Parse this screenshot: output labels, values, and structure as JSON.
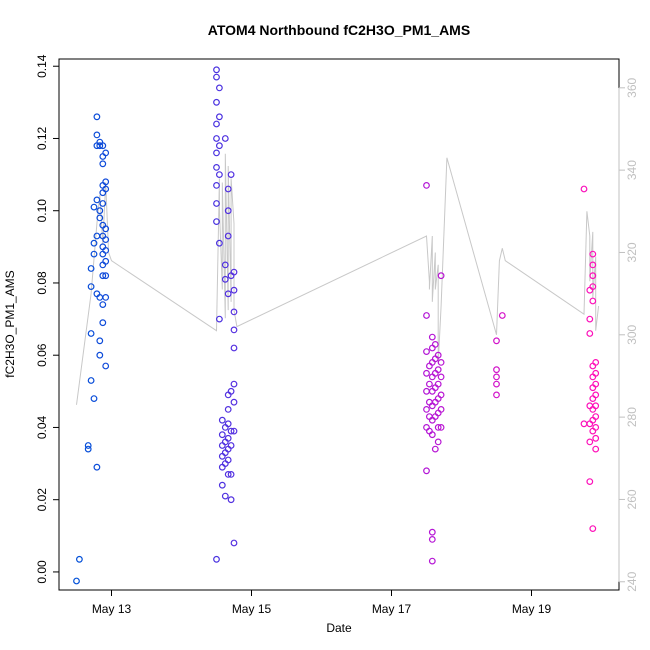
{
  "chart_data": {
    "type": "scatter",
    "title": "ATOM4 Northbound fC2H3O_PM1_AMS",
    "xlabel": "Date",
    "ylabel": "fC2H3O_PM1_AMS",
    "x_ticks": [
      "May 13",
      "May 15",
      "May 17",
      "May 19"
    ],
    "y_ticks": [
      "0.00",
      "0.02",
      "0.04",
      "0.06",
      "0.08",
      "0.10",
      "0.12",
      "0.14"
    ],
    "y2_ticks": [
      "240",
      "260",
      "280",
      "300",
      "320",
      "340",
      "360"
    ],
    "ylim": [
      -0.005,
      0.142
    ],
    "y2lim": [
      238,
      367
    ],
    "xlim": [
      "May 12 06:00",
      "May 20 06:00"
    ],
    "grid": false,
    "colors": {
      "start": "#0050d8",
      "mid": "#8a1ae6",
      "end": "#ff10b8",
      "line": "#c8c8c8",
      "right_axis": "#c0c0c0"
    },
    "series": [
      {
        "marker": "circle",
        "points": [
          [
            "May 12 12:00",
            -0.0025
          ],
          [
            "May 12 13:00",
            0.0035
          ],
          [
            "May 12 16:00",
            0.035
          ],
          [
            "May 12 16:00",
            0.034
          ],
          [
            "May 12 17:00",
            0.053
          ],
          [
            "May 12 17:00",
            0.066
          ],
          [
            "May 12 17:00",
            0.079
          ],
          [
            "May 12 17:00",
            0.084
          ],
          [
            "May 12 18:00",
            0.048
          ],
          [
            "May 12 18:00",
            0.088
          ],
          [
            "May 12 18:00",
            0.091
          ],
          [
            "May 12 18:00",
            0.101
          ],
          [
            "May 12 19:00",
            0.126
          ],
          [
            "May 12 19:00",
            0.118
          ],
          [
            "May 12 19:00",
            0.121
          ],
          [
            "May 12 19:00",
            0.103
          ],
          [
            "May 12 19:00",
            0.093
          ],
          [
            "May 12 19:00",
            0.077
          ],
          [
            "May 12 19:00",
            0.029
          ],
          [
            "May 12 20:00",
            0.119
          ],
          [
            "May 12 20:00",
            0.118
          ],
          [
            "May 12 20:00",
            0.1
          ],
          [
            "May 12 20:00",
            0.098
          ],
          [
            "May 12 20:00",
            0.076
          ],
          [
            "May 12 20:00",
            0.064
          ],
          [
            "May 12 20:00",
            0.06
          ],
          [
            "May 12 21:00",
            0.118
          ],
          [
            "May 12 21:00",
            0.115
          ],
          [
            "May 12 21:00",
            0.113
          ],
          [
            "May 12 21:00",
            0.107
          ],
          [
            "May 12 21:00",
            0.105
          ],
          [
            "May 12 21:00",
            0.102
          ],
          [
            "May 12 21:00",
            0.096
          ],
          [
            "May 12 21:00",
            0.093
          ],
          [
            "May 12 21:00",
            0.09
          ],
          [
            "May 12 21:00",
            0.088
          ],
          [
            "May 12 21:00",
            0.085
          ],
          [
            "May 12 21:00",
            0.082
          ],
          [
            "May 12 21:00",
            0.074
          ],
          [
            "May 12 21:00",
            0.069
          ],
          [
            "May 12 22:00",
            0.116
          ],
          [
            "May 12 22:00",
            0.108
          ],
          [
            "May 12 22:00",
            0.106
          ],
          [
            "May 12 22:00",
            0.095
          ],
          [
            "May 12 22:00",
            0.092
          ],
          [
            "May 12 22:00",
            0.089
          ],
          [
            "May 12 22:00",
            0.086
          ],
          [
            "May 12 22:00",
            0.082
          ],
          [
            "May 12 22:00",
            0.076
          ],
          [
            "May 12 22:00",
            0.057
          ],
          [
            "May 14 12:00",
            0.0035
          ],
          [
            "May 14 12:00",
            0.139
          ],
          [
            "May 14 12:00",
            0.137
          ],
          [
            "May 14 12:00",
            0.13
          ],
          [
            "May 14 12:00",
            0.124
          ],
          [
            "May 14 12:00",
            0.12
          ],
          [
            "May 14 12:00",
            0.116
          ],
          [
            "May 14 12:00",
            0.112
          ],
          [
            "May 14 12:00",
            0.107
          ],
          [
            "May 14 12:00",
            0.102
          ],
          [
            "May 14 12:00",
            0.097
          ],
          [
            "May 14 13:00",
            0.134
          ],
          [
            "May 14 13:00",
            0.126
          ],
          [
            "May 14 13:00",
            0.118
          ],
          [
            "May 14 13:00",
            0.11
          ],
          [
            "May 14 13:00",
            0.091
          ],
          [
            "May 14 13:00",
            0.07
          ],
          [
            "May 14 14:00",
            0.042
          ],
          [
            "May 14 14:00",
            0.038
          ],
          [
            "May 14 14:00",
            0.035
          ],
          [
            "May 14 14:00",
            0.032
          ],
          [
            "May 14 14:00",
            0.029
          ],
          [
            "May 14 14:00",
            0.024
          ],
          [
            "May 14 15:00",
            0.12
          ],
          [
            "May 14 15:00",
            0.085
          ],
          [
            "May 14 15:00",
            0.081
          ],
          [
            "May 14 15:00",
            0.04
          ],
          [
            "May 14 15:00",
            0.036
          ],
          [
            "May 14 15:00",
            0.033
          ],
          [
            "May 14 15:00",
            0.03
          ],
          [
            "May 14 15:00",
            0.021
          ],
          [
            "May 14 16:00",
            0.106
          ],
          [
            "May 14 16:00",
            0.1
          ],
          [
            "May 14 16:00",
            0.093
          ],
          [
            "May 14 16:00",
            0.077
          ],
          [
            "May 14 16:00",
            0.049
          ],
          [
            "May 14 16:00",
            0.045
          ],
          [
            "May 14 16:00",
            0.041
          ],
          [
            "May 14 16:00",
            0.037
          ],
          [
            "May 14 16:00",
            0.034
          ],
          [
            "May 14 16:00",
            0.031
          ],
          [
            "May 14 16:00",
            0.027
          ],
          [
            "May 14 17:00",
            0.11
          ],
          [
            "May 14 17:00",
            0.082
          ],
          [
            "May 14 17:00",
            0.05
          ],
          [
            "May 14 17:00",
            0.039
          ],
          [
            "May 14 17:00",
            0.035
          ],
          [
            "May 14 17:00",
            0.027
          ],
          [
            "May 14 17:00",
            0.02
          ],
          [
            "May 14 18:00",
            0.083
          ],
          [
            "May 14 18:00",
            0.078
          ],
          [
            "May 14 18:00",
            0.072
          ],
          [
            "May 14 18:00",
            0.067
          ],
          [
            "May 14 18:00",
            0.062
          ],
          [
            "May 14 18:00",
            0.052
          ],
          [
            "May 14 18:00",
            0.047
          ],
          [
            "May 14 18:00",
            0.039
          ],
          [
            "May 14 18:00",
            0.008
          ],
          [
            "May 17 12:00",
            0.107
          ],
          [
            "May 17 12:00",
            0.071
          ],
          [
            "May 17 12:00",
            0.061
          ],
          [
            "May 17 12:00",
            0.055
          ],
          [
            "May 17 12:00",
            0.05
          ],
          [
            "May 17 12:00",
            0.045
          ],
          [
            "May 17 12:00",
            0.04
          ],
          [
            "May 17 12:00",
            0.028
          ],
          [
            "May 17 13:00",
            0.057
          ],
          [
            "May 17 13:00",
            0.052
          ],
          [
            "May 17 13:00",
            0.047
          ],
          [
            "May 17 13:00",
            0.043
          ],
          [
            "May 17 13:00",
            0.039
          ],
          [
            "May 17 14:00",
            0.065
          ],
          [
            "May 17 14:00",
            0.062
          ],
          [
            "May 17 14:00",
            0.058
          ],
          [
            "May 17 14:00",
            0.054
          ],
          [
            "May 17 14:00",
            0.05
          ],
          [
            "May 17 14:00",
            0.046
          ],
          [
            "May 17 14:00",
            0.042
          ],
          [
            "May 17 14:00",
            0.038
          ],
          [
            "May 17 14:00",
            0.011
          ],
          [
            "May 17 14:00",
            0.009
          ],
          [
            "May 17 14:00",
            0.003
          ],
          [
            "May 17 15:00",
            0.063
          ],
          [
            "May 17 15:00",
            0.059
          ],
          [
            "May 17 15:00",
            0.055
          ],
          [
            "May 17 15:00",
            0.051
          ],
          [
            "May 17 15:00",
            0.047
          ],
          [
            "May 17 15:00",
            0.043
          ],
          [
            "May 17 15:00",
            0.034
          ],
          [
            "May 17 16:00",
            0.06
          ],
          [
            "May 17 16:00",
            0.056
          ],
          [
            "May 17 16:00",
            0.052
          ],
          [
            "May 17 16:00",
            0.048
          ],
          [
            "May 17 16:00",
            0.044
          ],
          [
            "May 17 16:00",
            0.04
          ],
          [
            "May 17 16:00",
            0.036
          ],
          [
            "May 17 17:00",
            0.082
          ],
          [
            "May 17 17:00",
            0.058
          ],
          [
            "May 17 17:00",
            0.054
          ],
          [
            "May 17 17:00",
            0.049
          ],
          [
            "May 17 17:00",
            0.045
          ],
          [
            "May 17 17:00",
            0.04
          ],
          [
            "May 18 12:00",
            0.064
          ],
          [
            "May 18 12:00",
            0.056
          ],
          [
            "May 18 12:00",
            0.054
          ],
          [
            "May 18 12:00",
            0.052
          ],
          [
            "May 18 12:00",
            0.049
          ],
          [
            "May 18 14:00",
            0.071
          ],
          [
            "May 19 18:00",
            0.106
          ],
          [
            "May 19 18:00",
            0.041
          ],
          [
            "May 19 20:00",
            0.078
          ],
          [
            "May 19 20:00",
            0.07
          ],
          [
            "May 19 20:00",
            0.066
          ],
          [
            "May 19 20:00",
            0.046
          ],
          [
            "May 19 20:00",
            0.041
          ],
          [
            "May 19 20:00",
            0.036
          ],
          [
            "May 19 20:00",
            0.025
          ],
          [
            "May 19 21:00",
            0.088
          ],
          [
            "May 19 21:00",
            0.085
          ],
          [
            "May 19 21:00",
            0.082
          ],
          [
            "May 19 21:00",
            0.079
          ],
          [
            "May 19 21:00",
            0.075
          ],
          [
            "May 19 21:00",
            0.057
          ],
          [
            "May 19 21:00",
            0.054
          ],
          [
            "May 19 21:00",
            0.051
          ],
          [
            "May 19 21:00",
            0.048
          ],
          [
            "May 19 21:00",
            0.045
          ],
          [
            "May 19 21:00",
            0.042
          ],
          [
            "May 19 21:00",
            0.039
          ],
          [
            "May 19 21:00",
            0.012
          ],
          [
            "May 19 22:00",
            0.058
          ],
          [
            "May 19 22:00",
            0.055
          ],
          [
            "May 19 22:00",
            0.052
          ],
          [
            "May 19 22:00",
            0.049
          ],
          [
            "May 19 22:00",
            0.046
          ],
          [
            "May 19 22:00",
            0.043
          ],
          [
            "May 19 22:00",
            0.04
          ],
          [
            "May 19 22:00",
            0.037
          ],
          [
            "May 19 22:00",
            0.034
          ]
        ]
      },
      {
        "type": "line",
        "axis": "right",
        "points": [
          [
            "May 12 12:00",
            283
          ],
          [
            "May 12 17:00",
            310
          ],
          [
            "May 12 19:00",
            327
          ],
          [
            "May 12 20:00",
            334
          ],
          [
            "May 12 21:00",
            322
          ],
          [
            "May 12 22:00",
            337
          ],
          [
            "May 12 23:00",
            320
          ],
          [
            "May 13 00:00",
            318
          ],
          [
            "May 14 12:00",
            301
          ],
          [
            "May 14 13:00",
            338
          ],
          [
            "May 14 13:00",
            331
          ],
          [
            "May 14 14:00",
            311
          ],
          [
            "May 14 14:00",
            337
          ],
          [
            "May 14 15:00",
            304
          ],
          [
            "May 14 15:00",
            344
          ],
          [
            "May 14 16:00",
            306
          ],
          [
            "May 14 16:00",
            341
          ],
          [
            "May 14 17:00",
            308
          ],
          [
            "May 14 17:00",
            338
          ],
          [
            "May 14 18:00",
            327
          ],
          [
            "May 14 18:00",
            306
          ],
          [
            "May 14 19:00",
            302
          ],
          [
            "May 17 12:00",
            324
          ],
          [
            "May 17 13:00",
            313
          ],
          [
            "May 17 13:00",
            311
          ],
          [
            "May 17 14:00",
            324
          ],
          [
            "May 17 14:00",
            308
          ],
          [
            "May 17 15:00",
            320
          ],
          [
            "May 17 15:00",
            311
          ],
          [
            "May 17 16:00",
            317
          ],
          [
            "May 17 16:00",
            293
          ],
          [
            "May 17 17:00",
            307
          ],
          [
            "May 17 19:00",
            343
          ],
          [
            "May 18 12:00",
            300
          ],
          [
            "May 18 13:00",
            318
          ],
          [
            "May 18 14:00",
            321
          ],
          [
            "May 18 15:00",
            318
          ],
          [
            "May 19 18:00",
            305
          ],
          [
            "May 19 19:00",
            330
          ],
          [
            "May 19 20:00",
            324
          ],
          [
            "May 19 20:00",
            313
          ],
          [
            "May 19 21:00",
            325
          ],
          [
            "May 19 21:00",
            309
          ],
          [
            "May 19 22:00",
            319
          ],
          [
            "May 19 22:00",
            301
          ],
          [
            "May 19 23:00",
            307
          ]
        ]
      }
    ]
  }
}
